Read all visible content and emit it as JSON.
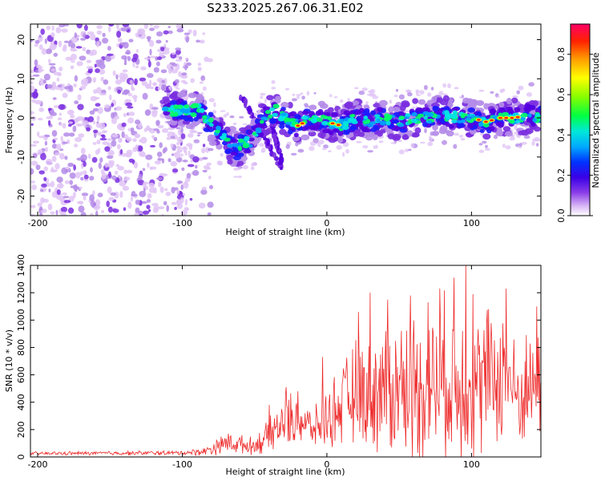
{
  "title": "S233.2025.267.06.31.E02",
  "colors": {
    "snr_line": "#ee2a2a",
    "frame": "#000000",
    "colormap": [
      "#e0c4f6",
      "#b48be8",
      "#7b2fe0",
      "#5500e0",
      "#1a1aff",
      "#00a2ff",
      "#00e5e5",
      "#00ff66",
      "#a8ff00",
      "#ffff00",
      "#ffaa00",
      "#ff2200",
      "#ff0077"
    ]
  },
  "chart_data": [
    {
      "type": "heatmap",
      "name": "spectrogram",
      "xlabel": "Height of straight line (km)",
      "ylabel": "Frequency (Hz)",
      "xlim": [
        -205,
        148
      ],
      "ylim": [
        -25,
        24
      ],
      "xticks": [
        -200,
        -100,
        0,
        100
      ],
      "yticks": [
        -20,
        -10,
        0,
        10,
        20
      ],
      "ridge": [
        [
          -110,
          2
        ],
        [
          -95,
          2
        ],
        [
          -88,
          2
        ],
        [
          -82,
          -1
        ],
        [
          -77,
          -3
        ],
        [
          -72,
          -5
        ],
        [
          -67,
          -7
        ],
        [
          -62,
          -8
        ],
        [
          -57,
          -6
        ],
        [
          -52,
          -6
        ],
        [
          -48,
          -3
        ],
        [
          -44,
          -1
        ],
        [
          -40,
          1
        ],
        [
          -35,
          2
        ],
        [
          -30,
          0
        ],
        [
          -25,
          -1
        ],
        [
          -20,
          -2
        ],
        [
          -15,
          -1
        ],
        [
          -10,
          0
        ],
        [
          0,
          -1
        ],
        [
          10,
          -2
        ],
        [
          20,
          0
        ],
        [
          30,
          -1
        ],
        [
          40,
          0
        ],
        [
          50,
          -1
        ],
        [
          60,
          0
        ],
        [
          70,
          0
        ],
        [
          80,
          1
        ],
        [
          90,
          0
        ],
        [
          100,
          0
        ],
        [
          110,
          -1
        ],
        [
          120,
          0
        ],
        [
          130,
          0
        ],
        [
          140,
          1
        ],
        [
          148,
          0
        ]
      ],
      "branches": [
        {
          "name": "upper-branch",
          "points": [
            [
              -60,
              6
            ],
            [
              -54,
              2
            ],
            [
              -48,
              -2
            ],
            [
              -42,
              -6
            ],
            [
              -36,
              -10
            ],
            [
              -31,
              -13
            ]
          ]
        },
        {
          "name": "lower-branch",
          "points": [
            [
              -38,
              -2
            ],
            [
              -35,
              -6
            ],
            [
              -31,
              -11
            ]
          ]
        }
      ],
      "colorbar": {
        "label": "Normalized spectral amplitude",
        "range": [
          0,
          0.95
        ],
        "ticks": [
          0.0,
          0.2,
          0.4,
          0.6,
          0.8
        ]
      }
    },
    {
      "type": "line",
      "name": "snr",
      "xlabel": "Height of straight line (km)",
      "ylabel": "SNR (10 * v/v)",
      "xlim": [
        -205,
        148
      ],
      "ylim": [
        0,
        1400
      ],
      "xticks": [
        -200,
        -100,
        0,
        100
      ],
      "yticks": [
        0,
        200,
        400,
        600,
        800,
        1000,
        1200,
        1400
      ],
      "envelope": [
        {
          "x": -205,
          "mean": 25,
          "amp": 15
        },
        {
          "x": -100,
          "mean": 30,
          "amp": 20
        },
        {
          "x": -85,
          "mean": 40,
          "amp": 35
        },
        {
          "x": -70,
          "mean": 100,
          "amp": 90
        },
        {
          "x": -50,
          "mean": 80,
          "amp": 70
        },
        {
          "x": -40,
          "mean": 160,
          "amp": 160
        },
        {
          "x": -30,
          "mean": 250,
          "amp": 230
        },
        {
          "x": -20,
          "mean": 280,
          "amp": 250
        },
        {
          "x": -10,
          "mean": 200,
          "amp": 150
        },
        {
          "x": 0,
          "mean": 280,
          "amp": 250
        },
        {
          "x": 10,
          "mean": 380,
          "amp": 350
        },
        {
          "x": 20,
          "mean": 470,
          "amp": 450
        },
        {
          "x": 40,
          "mean": 500,
          "amp": 580
        },
        {
          "x": 60,
          "mean": 520,
          "amp": 650
        },
        {
          "x": 80,
          "mean": 560,
          "amp": 700
        },
        {
          "x": 100,
          "mean": 520,
          "amp": 650
        },
        {
          "x": 115,
          "mean": 580,
          "amp": 600
        },
        {
          "x": 125,
          "mean": 600,
          "amp": 580
        },
        {
          "x": 132,
          "mean": 420,
          "amp": 380
        },
        {
          "x": 148,
          "mean": 560,
          "amp": 500
        }
      ],
      "peaks": [
        [
          -68,
          170
        ],
        [
          -60,
          140
        ],
        [
          -40,
          380
        ],
        [
          -28,
          510
        ],
        [
          -20,
          480
        ],
        [
          -3,
          730
        ],
        [
          22,
          1060
        ],
        [
          30,
          1200
        ],
        [
          42,
          1150
        ],
        [
          58,
          1180
        ],
        [
          70,
          1130
        ],
        [
          78,
          1230
        ],
        [
          88,
          1310
        ],
        [
          96,
          1400
        ],
        [
          101,
          1190
        ],
        [
          112,
          1080
        ],
        [
          124,
          1230
        ],
        [
          138,
          890
        ],
        [
          145,
          1100
        ]
      ]
    }
  ]
}
